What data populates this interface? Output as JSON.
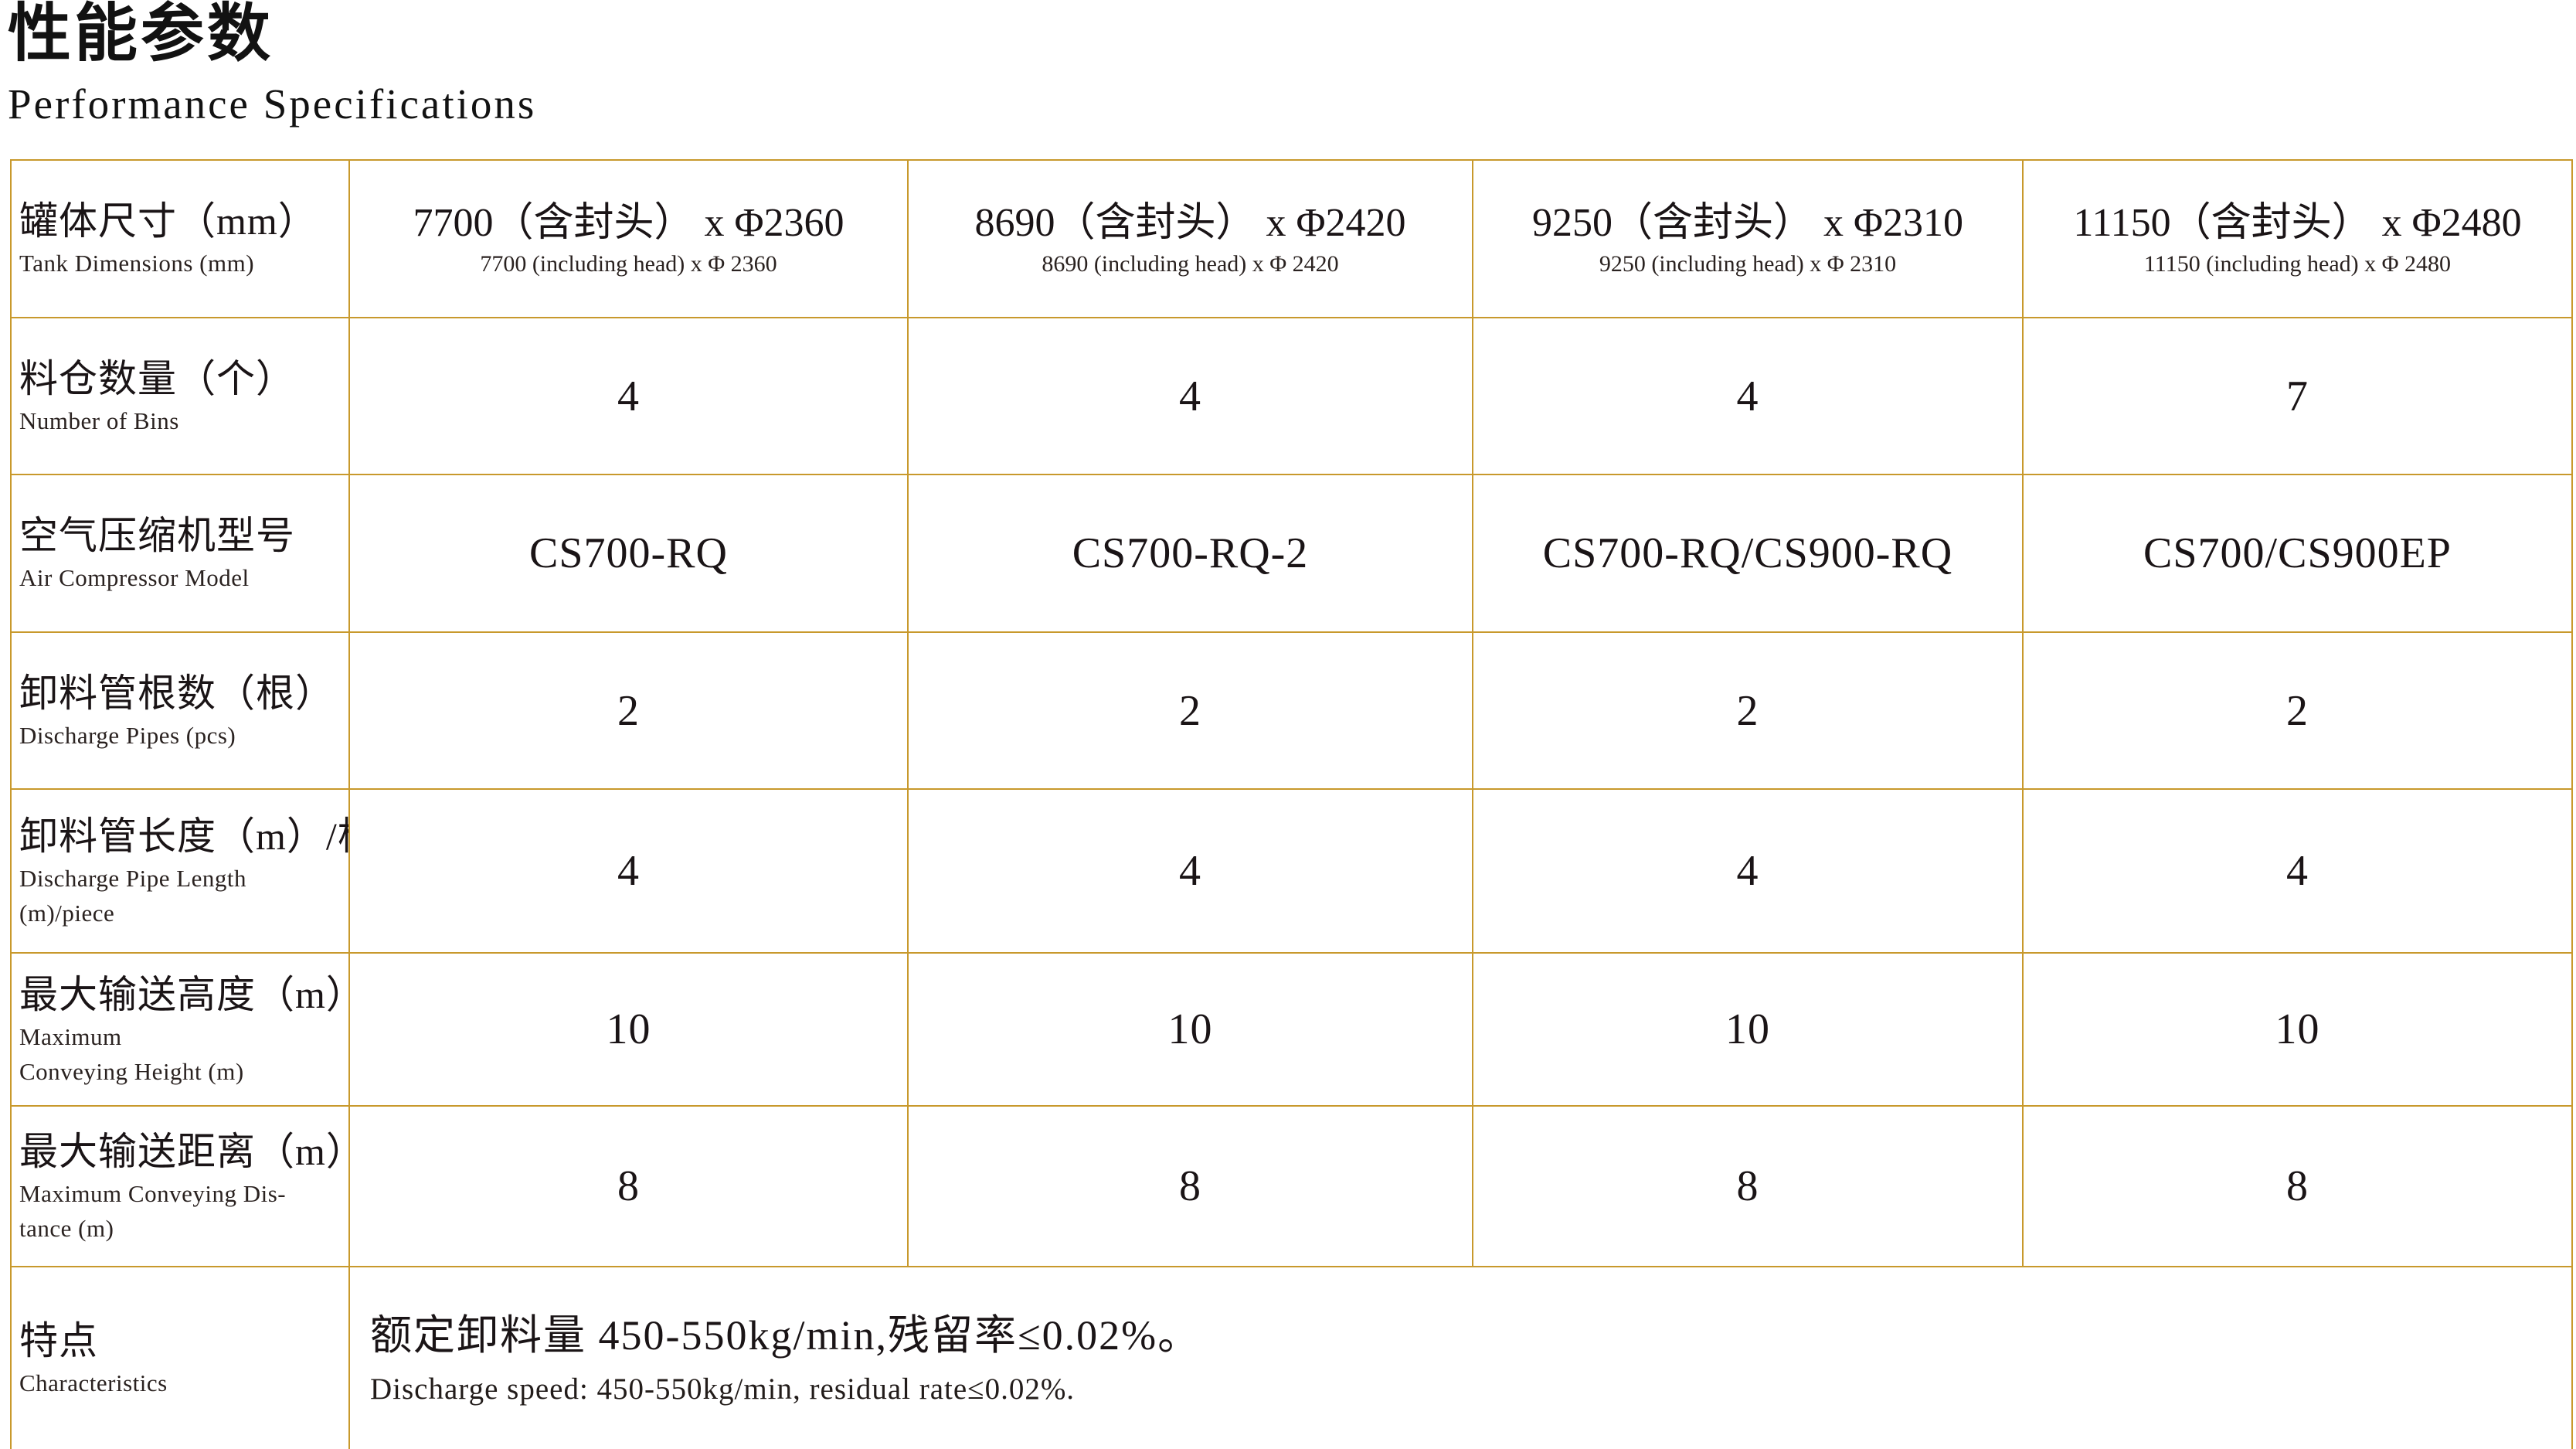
{
  "page": {
    "title_zh": "性能参数",
    "title_en": "Performance Specifications"
  },
  "accent_border_color": "#C8992C",
  "table": {
    "header_label": {
      "zh": "罐体尺寸（mm）",
      "en": "Tank Dimensions (mm)"
    },
    "columns": [
      {
        "zh": "7700（含封头） x Φ2360",
        "en": "7700 (including head) x Φ 2360"
      },
      {
        "zh": "8690（含封头） x Φ2420",
        "en": "8690 (including head) x Φ 2420"
      },
      {
        "zh": "9250（含封头） x Φ2310",
        "en": "9250 (including head) x Φ 2310"
      },
      {
        "zh": "11150（含封头） x Φ2480",
        "en": "11150 (including head) x Φ 2480"
      }
    ],
    "rows": [
      {
        "label": {
          "zh": "料仓数量（个）",
          "en1": "Number of Bins"
        },
        "values": [
          "4",
          "4",
          "4",
          "7"
        ]
      },
      {
        "label": {
          "zh": "空气压缩机型号",
          "en1": "Air Compressor Model"
        },
        "values": [
          "CS700-RQ",
          "CS700-RQ-2",
          "CS700-RQ/CS900-RQ",
          "CS700/CS900EP"
        ]
      },
      {
        "label": {
          "zh": "卸料管根数（根）",
          "en1": "Discharge Pipes (pcs)"
        },
        "values": [
          "2",
          "2",
          "2",
          "2"
        ]
      },
      {
        "label": {
          "zh": "卸料管长度（m）/根",
          "en1": "Discharge Pipe Length",
          "en2": "(m)/piece"
        },
        "values": [
          "4",
          "4",
          "4",
          "4"
        ]
      },
      {
        "label": {
          "zh": "最大输送高度（m）",
          "en1": "Maximum",
          "en2": "Conveying Height (m)"
        },
        "values": [
          "10",
          "10",
          "10",
          "10"
        ]
      },
      {
        "label": {
          "zh": "最大输送距离（m）",
          "en1": "Maximum Conveying Dis-",
          "en2": "tance (m)"
        },
        "values": [
          "8",
          "8",
          "8",
          "8"
        ]
      }
    ],
    "footer": {
      "label": {
        "zh": "特点",
        "en1": "Characteristics"
      },
      "content": {
        "zh": "额定卸料量 450-550kg/min,残留率≤0.02%。",
        "en": "Discharge speed: 450-550kg/min, residual rate≤0.02%."
      }
    }
  }
}
